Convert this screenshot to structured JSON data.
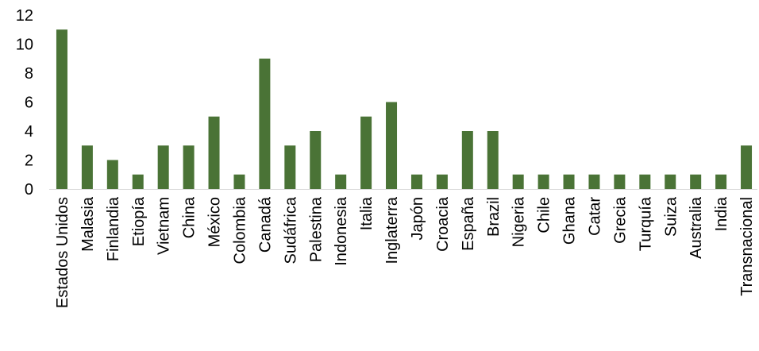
{
  "chart_data": {
    "type": "bar",
    "categories": [
      "Estados Unidos",
      "Malasia",
      "Finlandia",
      "Etiopía",
      "Vietnam",
      "China",
      "México",
      "Colombia",
      "Canadá",
      "Sudáfrica",
      "Palestina",
      "Indonesia",
      "Italia",
      "Inglaterra",
      "Japón",
      "Croacia",
      "España",
      "Brazil",
      "Nigeria",
      "Chile",
      "Ghana",
      "Catar",
      "Grecia",
      "Turquía",
      "Suiza",
      "Australia",
      "India",
      "Transnacional"
    ],
    "values": [
      11,
      3,
      2,
      1,
      3,
      3,
      5,
      1,
      9,
      3,
      4,
      1,
      5,
      6,
      1,
      1,
      4,
      4,
      1,
      1,
      1,
      1,
      1,
      1,
      1,
      1,
      1,
      3
    ],
    "title": "",
    "xlabel": "",
    "ylabel": "",
    "ylim": [
      0,
      12
    ],
    "yticks": [
      0,
      2,
      4,
      6,
      8,
      10,
      12
    ],
    "grid": false,
    "legend": "none",
    "bar_color": "#4a7336"
  }
}
